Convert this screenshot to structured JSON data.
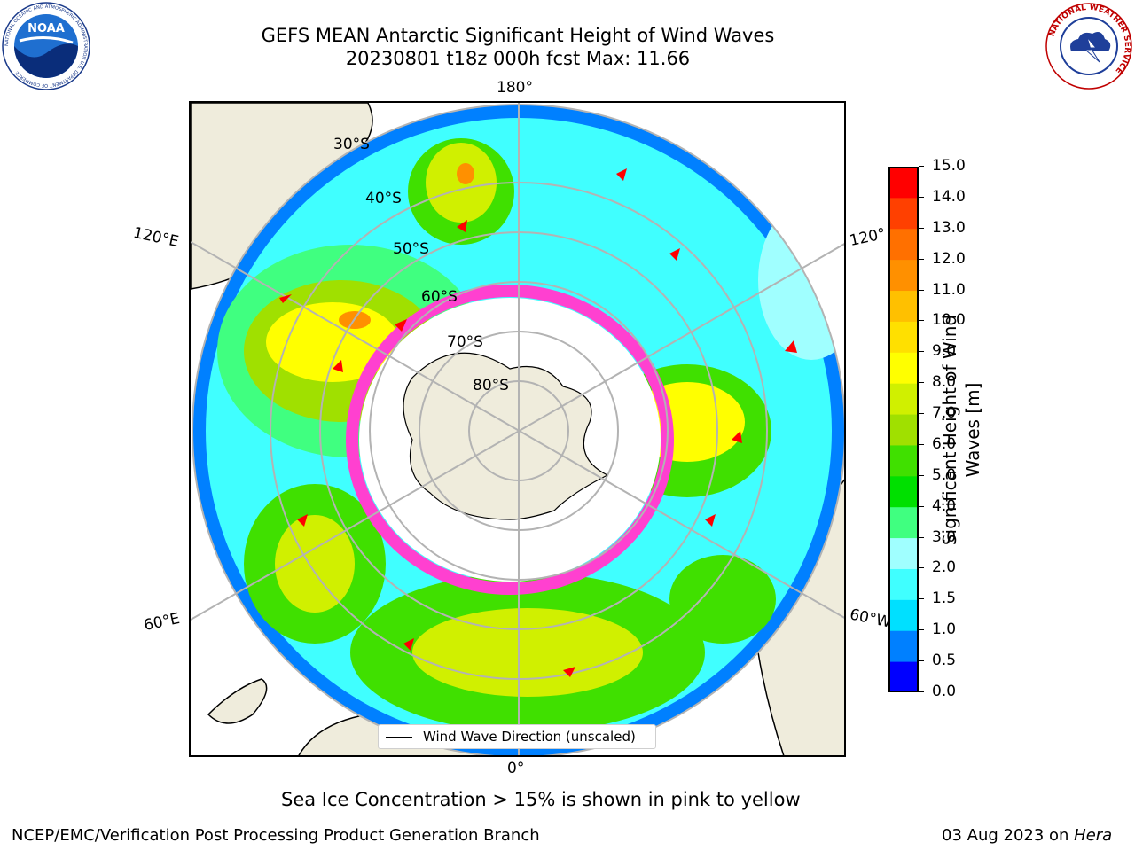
{
  "title": {
    "line1": "GEFS MEAN Antarctic Significant Height of Wind Waves",
    "line2": "20230801 t18z 000h fcst   Max: 11.66"
  },
  "logos": {
    "left": {
      "name": "noaa-logo",
      "center_text": "NOAA",
      "ring_text": "NATIONAL OCEANIC AND ATMOSPHERIC ADMINISTRATION  U.S. DEPARTMENT OF COMMERCE"
    },
    "right": {
      "name": "nws-logo",
      "ring_text": "NATIONAL WEATHER SERVICE"
    }
  },
  "map": {
    "lon_labels": {
      "top": "180°",
      "bottom": "0°",
      "upper_left": "120°E",
      "lower_left": "60°E",
      "upper_right": "120°",
      "lower_right": "60°W"
    },
    "lat_labels": [
      "30°S",
      "40°S",
      "50°S",
      "60°S",
      "70°S",
      "80°S"
    ],
    "legend_label": "Wind Wave Direction (unscaled)"
  },
  "colorbar": {
    "label": "Significant Height of Wind Waves [m]",
    "ticks": [
      "0.0",
      "0.5",
      "1.0",
      "1.5",
      "2.0",
      "3.0",
      "4.0",
      "5.0",
      "6.0",
      "7.0",
      "8.0",
      "9.0",
      "10.0",
      "11.0",
      "12.0",
      "13.0",
      "14.0",
      "15.0"
    ],
    "colors": [
      "#0000ff",
      "#0080ff",
      "#00e0ff",
      "#40ffff",
      "#a0ffff",
      "#40ff80",
      "#00e000",
      "#40e000",
      "#a0e000",
      "#d0f000",
      "#ffff00",
      "#ffe000",
      "#ffc000",
      "#ff9000",
      "#ff7000",
      "#ff4000",
      "#ff0000"
    ]
  },
  "note": "Sea Ice Concentration > 15% is shown in pink to yellow",
  "footer": {
    "left": "NCEP/EMC/Verification Post Processing Product Generation Branch",
    "right_prefix": "03 Aug 2023 on ",
    "right_machine": "Hera"
  }
}
